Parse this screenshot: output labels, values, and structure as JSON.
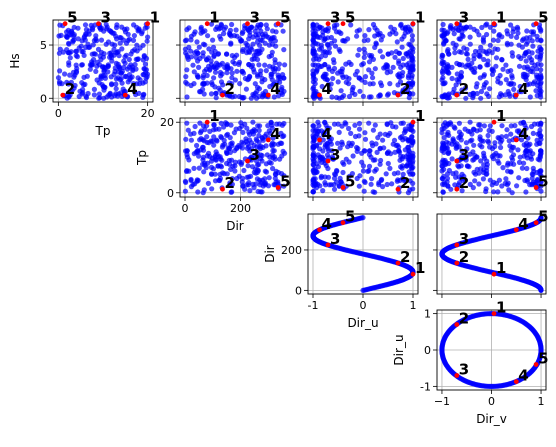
{
  "chart_data": {
    "type": "scatter",
    "point_color": "#0000ff",
    "highlight_color": "#ff0000",
    "grid": true,
    "annotation_labels": [
      "1",
      "2",
      "3",
      "4",
      "5"
    ],
    "variables": {
      "Tp": {
        "label": "Tp",
        "range": [
          -1.2,
          21.2
        ],
        "ticks": [
          0,
          20
        ],
        "tick_labels": [
          "0",
          "20"
        ]
      },
      "Hs": {
        "label": "Hs",
        "range": [
          -0.35,
          7.35
        ],
        "ticks": [
          0,
          5
        ],
        "tick_labels": [
          "0",
          "5"
        ]
      },
      "Dir": {
        "label": "Dir",
        "range": [
          -18,
          378
        ],
        "ticks": [
          0,
          200
        ],
        "tick_labels": [
          "0",
          "200"
        ]
      },
      "Dir_u": {
        "label": "Dir_u",
        "range": [
          -1.1,
          1.1
        ],
        "ticks": [
          -1,
          0,
          1
        ],
        "tick_labels": [
          "-1",
          "0",
          "1"
        ]
      },
      "Dir_v": {
        "label": "Dir_v",
        "range": [
          -1.1,
          1.1
        ],
        "ticks": [
          -1,
          0,
          1
        ],
        "tick_labels": [
          "−1",
          "0",
          "1"
        ]
      }
    },
    "axis_ticks": {
      "Tp": [
        0,
        20
      ],
      "Hs": [
        0,
        5
      ],
      "Dir": [
        0,
        200
      ],
      "Dir_u": [
        -1,
        0,
        1
      ],
      "Dir_v": [
        -1,
        0,
        1
      ]
    },
    "panels": [
      {
        "x": "Tp",
        "y": "Hs",
        "show_x_axis": true,
        "show_y_axis": true,
        "x_title": "Tp",
        "y_title": "Hs"
      },
      {
        "x": "Dir",
        "y": "Hs",
        "show_x_axis": false,
        "show_y_axis": false
      },
      {
        "x": "Dir_u",
        "y": "Hs",
        "show_x_axis": false,
        "show_y_axis": false
      },
      {
        "x": "Dir_v",
        "y": "Hs",
        "show_x_axis": false,
        "show_y_axis": false
      },
      {
        "x": "Dir",
        "y": "Tp",
        "show_x_axis": true,
        "show_y_axis": true,
        "x_title": "Dir",
        "y_title": "Tp"
      },
      {
        "x": "Dir_u",
        "y": "Tp",
        "show_x_axis": false,
        "show_y_axis": false
      },
      {
        "x": "Dir_v",
        "y": "Tp",
        "show_x_axis": false,
        "show_y_axis": false
      },
      {
        "x": "Dir_u",
        "y": "Dir",
        "show_x_axis": true,
        "show_y_axis": true,
        "x_title": "Dir_u",
        "y_title": "Dir"
      },
      {
        "x": "Dir_v",
        "y": "Dir",
        "show_x_axis": false,
        "show_y_axis": false
      },
      {
        "x": "Dir_v",
        "y": "Dir_u",
        "show_x_axis": true,
        "show_y_axis": true,
        "x_title": "Dir_v",
        "y_title": "Dir_u"
      }
    ],
    "highlighted_points": [
      {
        "label": "1",
        "Hs": 7.0,
        "Tp": 20.0,
        "Dir": 80,
        "Dir_u": 1.0,
        "Dir_v": 0.05
      },
      {
        "label": "2",
        "Hs": 0.3,
        "Tp": 1.0,
        "Dir": 135,
        "Dir_u": 0.7,
        "Dir_v": -0.7
      },
      {
        "label": "3",
        "Hs": 7.0,
        "Tp": 9.0,
        "Dir": 225,
        "Dir_u": -0.7,
        "Dir_v": -0.7
      },
      {
        "label": "4",
        "Hs": 0.3,
        "Tp": 15.0,
        "Dir": 300,
        "Dir_u": -0.87,
        "Dir_v": 0.5
      },
      {
        "label": "5",
        "Hs": 7.0,
        "Tp": 1.5,
        "Dir": 335,
        "Dir_u": -0.4,
        "Dir_v": 0.9
      }
    ]
  }
}
